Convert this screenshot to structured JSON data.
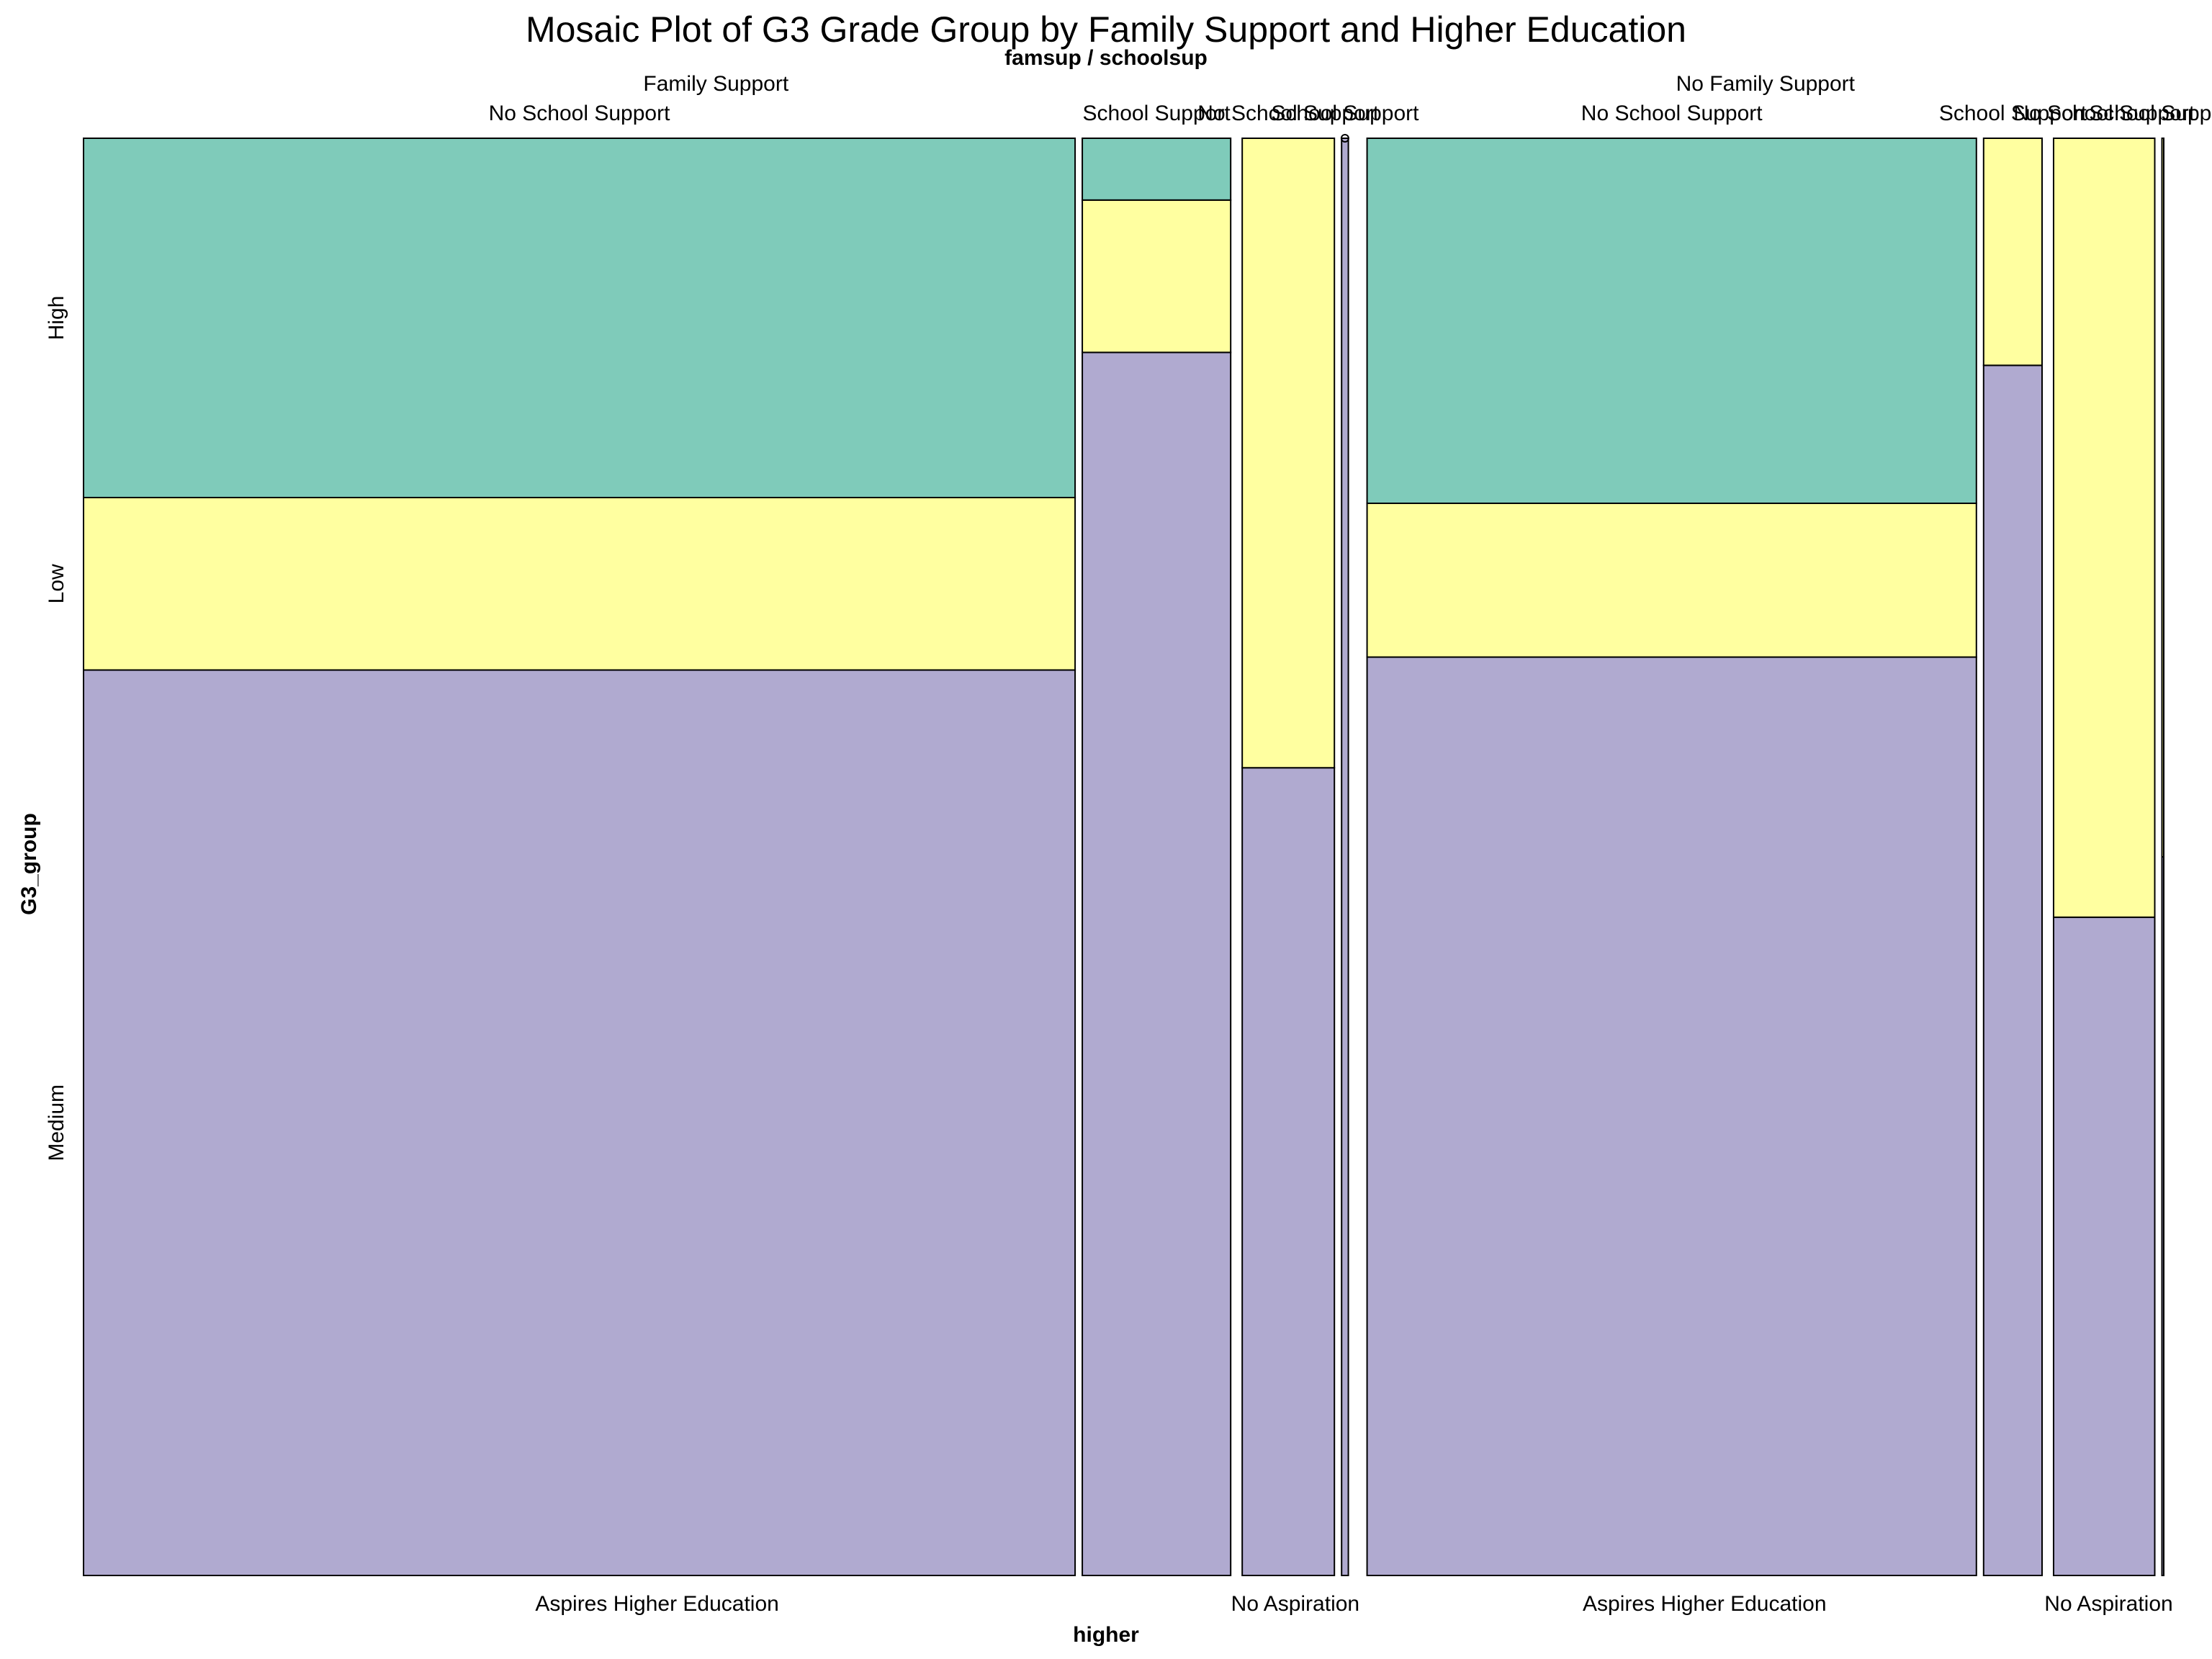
{
  "chart_data": {
    "type": "mosaic",
    "title": "Mosaic Plot of G3 Grade Group by Family Support and Higher Education",
    "xlabel": "higher",
    "ylabel": "G3_group",
    "top_axis_label": "famsup / schoolsup",
    "row_order": [
      "Medium",
      "Low",
      "High"
    ],
    "y_tick_labels": [
      "High",
      "Low",
      "Medium"
    ],
    "colors": {
      "High": "#7fcbba",
      "Low": "#ffffa0",
      "Medium": "#b0aad0"
    },
    "groups": [
      {
        "famsup": "Family Support",
        "higher": [
          {
            "label": "Aspires Higher Education",
            "schoolsup": [
              {
                "label": "No School Support",
                "width": 0.441,
                "fractions": {
                  "Medium": 0.63,
                  "Low": 0.12,
                  "High": 0.25
                }
              },
              {
                "label": "School Support",
                "width": 0.066,
                "fractions": {
                  "Medium": 0.851,
                  "Low": 0.106,
                  "High": 0.043
                }
              }
            ]
          },
          {
            "label": "No Aspiration",
            "schoolsup": [
              {
                "label": "No School Support",
                "width": 0.041,
                "fractions": {
                  "Medium": 0.562,
                  "Low": 0.438,
                  "High": 0.0
                }
              },
              {
                "label": "School Support",
                "width": 0.003,
                "fractions": {
                  "Medium": 1.0,
                  "Low": 0.0,
                  "High": 0.0
                }
              }
            ]
          }
        ]
      },
      {
        "famsup": "No Family Support",
        "higher": [
          {
            "label": "Aspires Higher Education",
            "schoolsup": [
              {
                "label": "No School Support",
                "width": 0.271,
                "fractions": {
                  "Medium": 0.639,
                  "Low": 0.107,
                  "High": 0.254
                }
              },
              {
                "label": "School Support",
                "width": 0.026,
                "fractions": {
                  "Medium": 0.842,
                  "Low": 0.158,
                  "High": 0.0
                }
              }
            ]
          },
          {
            "label": "No Aspiration",
            "schoolsup": [
              {
                "label": "No School Support",
                "width": 0.045,
                "fractions": {
                  "Medium": 0.458,
                  "Low": 0.542,
                  "High": 0.0
                }
              },
              {
                "label": "School Support",
                "width": 0.0008,
                "fractions": {
                  "Medium": 0.5,
                  "Low": 0.5,
                  "High": 0.0
                }
              }
            ]
          }
        ]
      }
    ],
    "grid": false,
    "legend": "none"
  }
}
